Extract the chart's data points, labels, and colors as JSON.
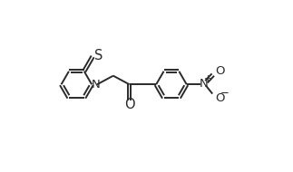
{
  "bg_color": "#ffffff",
  "line_color": "#2a2a2a",
  "line_width": 1.4,
  "font_size": 9.5,
  "charge_font_size": 7.5,
  "figsize": [
    3.23,
    1.9
  ],
  "dpi": 100,
  "xlim": [
    0.0,
    8.5
  ],
  "ylim": [
    0.0,
    5.5
  ]
}
